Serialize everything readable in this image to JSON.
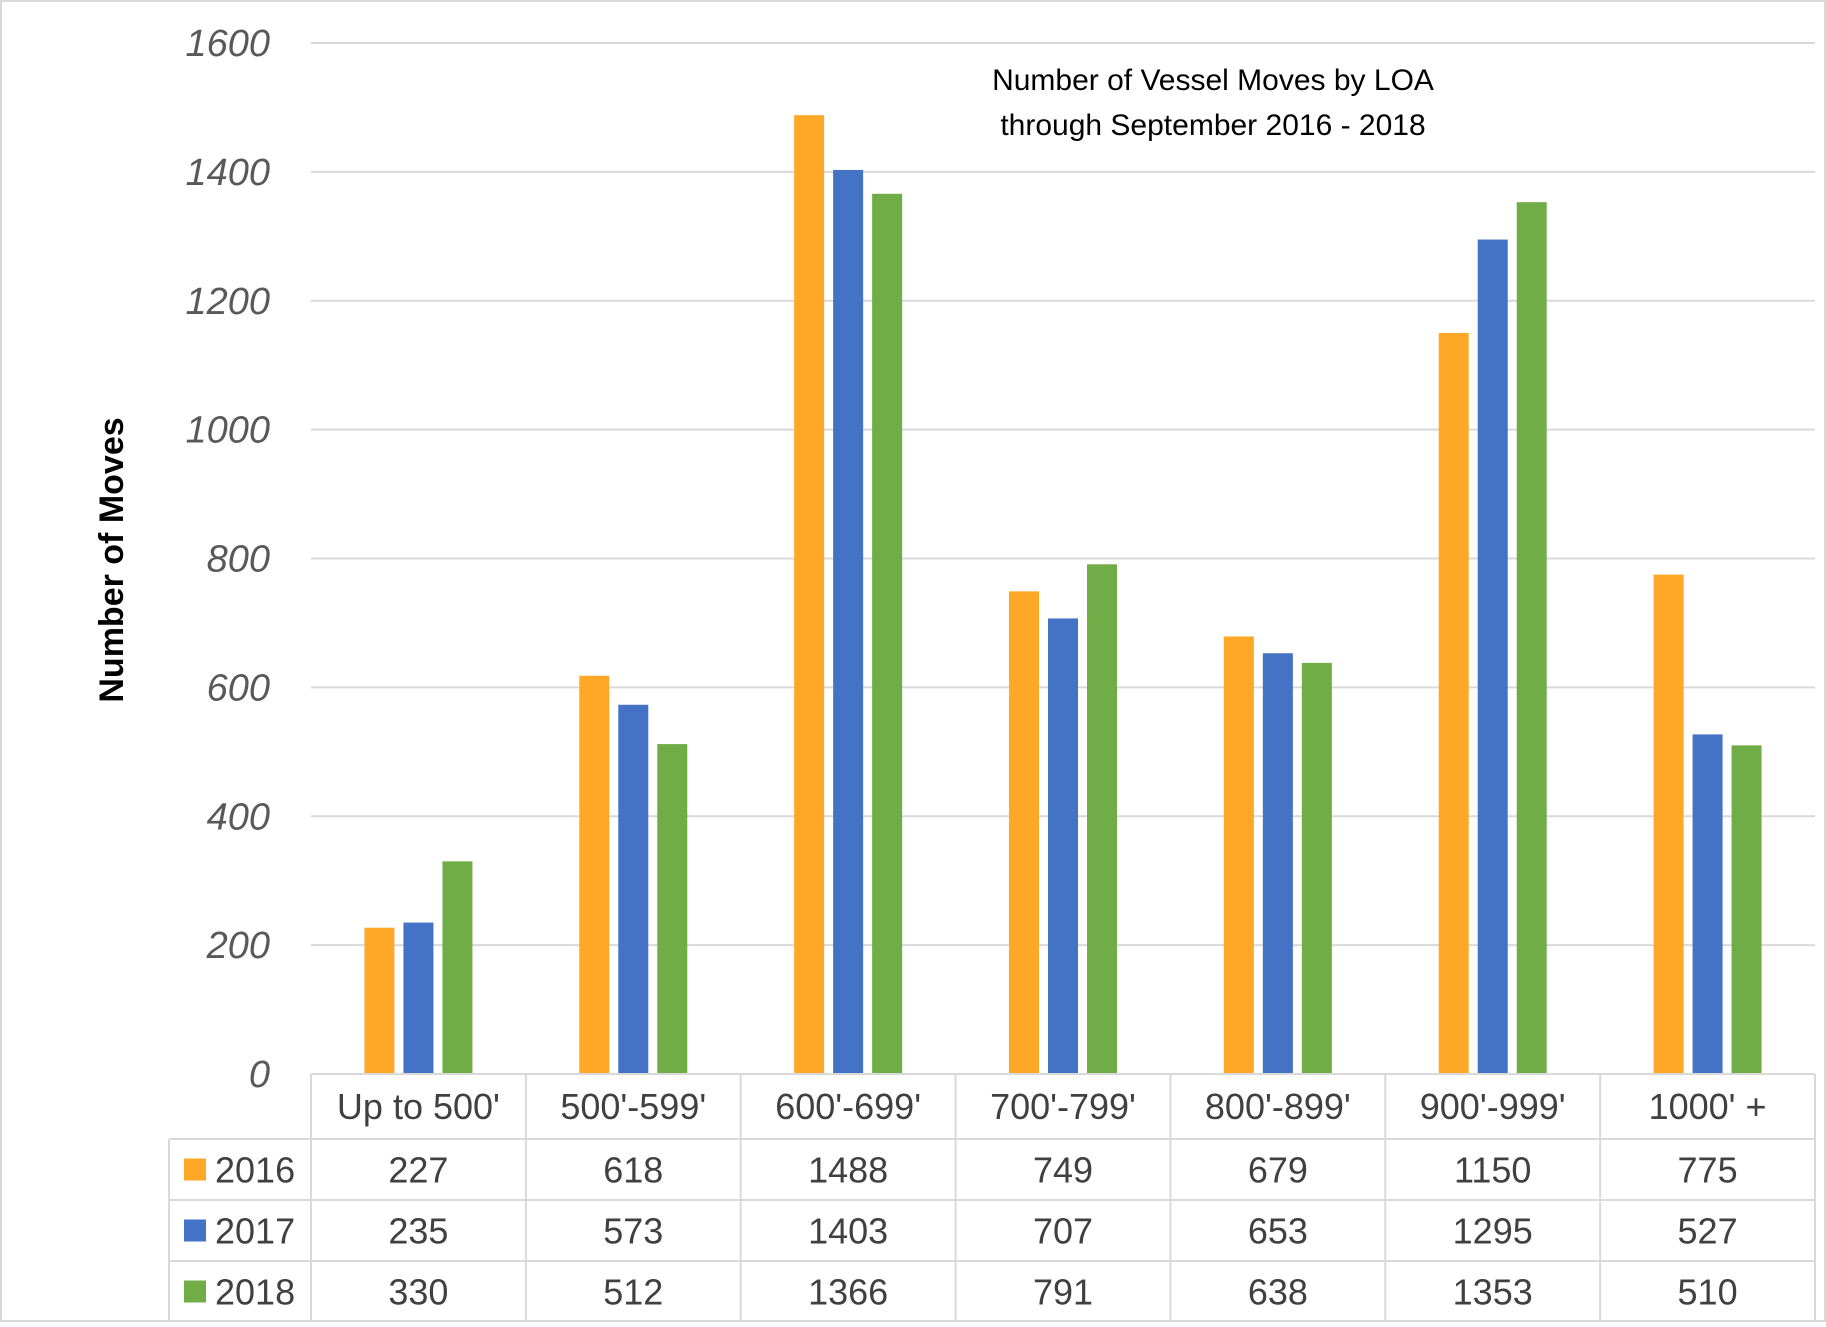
{
  "chart_data": {
    "type": "bar",
    "title_lines": [
      "Number of Vessel Moves by LOA",
      "through September 2016 - 2018"
    ],
    "ylabel": "Number of Moves",
    "xlabel": "",
    "ylim": [
      0,
      1600
    ],
    "y_ticks": [
      0,
      200,
      400,
      600,
      800,
      1000,
      1200,
      1400,
      1600
    ],
    "grid": true,
    "legend": "data-table",
    "categories": [
      "Up to 500'",
      "500'-599'",
      "600'-699'",
      "700'-799'",
      "800'-899'",
      "900'-999'",
      "1000' +"
    ],
    "series": [
      {
        "name": "2016",
        "color": "#FFA726",
        "values": [
          227,
          618,
          1488,
          749,
          679,
          1150,
          775
        ]
      },
      {
        "name": "2017",
        "color": "#4472C4",
        "values": [
          235,
          573,
          1403,
          707,
          653,
          1295,
          527
        ]
      },
      {
        "name": "2018",
        "color": "#70AD47",
        "values": [
          330,
          512,
          1366,
          791,
          638,
          1353,
          510
        ]
      }
    ]
  }
}
